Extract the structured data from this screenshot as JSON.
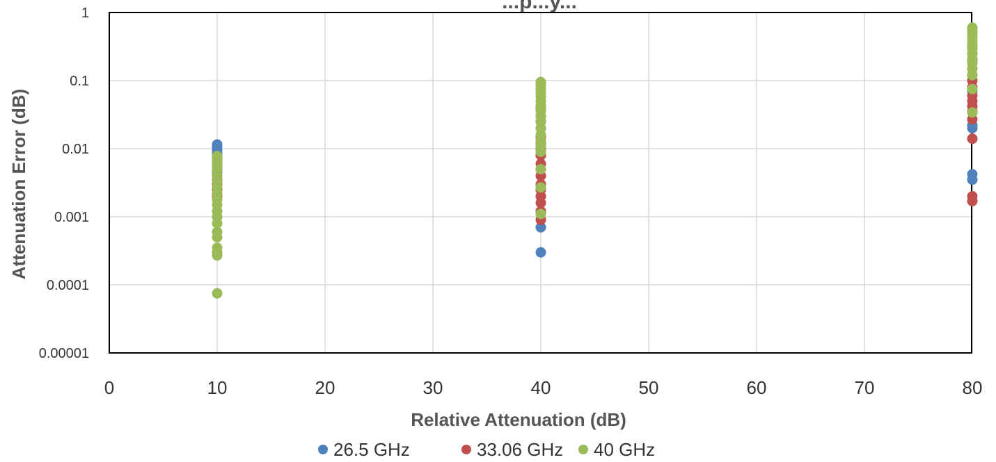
{
  "chart_data": {
    "type": "scatter",
    "title": "...p...y...",
    "xlabel": "Relative Attenuation (dB)",
    "ylabel": "Attenuation Error (dB)",
    "xlim": [
      0,
      80
    ],
    "ylim": [
      1e-05,
      1
    ],
    "y_scale": "log",
    "x_ticks": [
      "0",
      "10",
      "20",
      "30",
      "40",
      "50",
      "60",
      "70",
      "80"
    ],
    "y_ticks": [
      "0.00001",
      "0.0001",
      "0.001",
      "0.01",
      "0.1",
      "1"
    ],
    "grid": true,
    "legend_position": "bottom",
    "series": [
      {
        "name": "26.5 GHz",
        "color": "#4f81bd",
        "points": [
          [
            10,
            0.0115
          ],
          [
            10,
            0.0105
          ],
          [
            10,
            0.0095
          ],
          [
            10,
            0.0085
          ],
          [
            10,
            0.0075
          ],
          [
            10,
            0.0065
          ],
          [
            10,
            0.0055
          ],
          [
            10,
            0.0045
          ],
          [
            10,
            0.0035
          ],
          [
            10,
            0.0025
          ],
          [
            40,
            0.0003
          ],
          [
            40,
            0.0007
          ],
          [
            40,
            0.0012
          ],
          [
            40,
            0.002
          ],
          [
            40,
            0.004
          ],
          [
            40,
            0.008
          ],
          [
            40,
            0.015
          ],
          [
            80,
            0.0035
          ],
          [
            80,
            0.0042
          ],
          [
            80,
            0.02
          ],
          [
            80,
            0.022
          ],
          [
            80,
            0.05
          ],
          [
            80,
            0.07
          ]
        ]
      },
      {
        "name": "33.06 GHz",
        "color": "#c0504d",
        "points": [
          [
            10,
            0.002
          ],
          [
            10,
            0.0025
          ],
          [
            10,
            0.003
          ],
          [
            10,
            0.0035
          ],
          [
            10,
            0.004
          ],
          [
            10,
            0.005
          ],
          [
            10,
            0.006
          ],
          [
            10,
            0.007
          ],
          [
            40,
            0.0009
          ],
          [
            40,
            0.0012
          ],
          [
            40,
            0.0016
          ],
          [
            40,
            0.002
          ],
          [
            40,
            0.0025
          ],
          [
            40,
            0.003
          ],
          [
            40,
            0.004
          ],
          [
            40,
            0.005
          ],
          [
            40,
            0.006
          ],
          [
            40,
            0.008
          ],
          [
            40,
            0.01
          ],
          [
            40,
            0.012
          ],
          [
            40,
            0.015
          ],
          [
            40,
            0.02
          ],
          [
            40,
            0.025
          ],
          [
            40,
            0.03
          ],
          [
            40,
            0.04
          ],
          [
            80,
            0.0017
          ],
          [
            80,
            0.002
          ],
          [
            80,
            0.014
          ],
          [
            80,
            0.027
          ],
          [
            80,
            0.035
          ],
          [
            80,
            0.042
          ],
          [
            80,
            0.05
          ],
          [
            80,
            0.06
          ],
          [
            80,
            0.08
          ],
          [
            80,
            0.1
          ],
          [
            80,
            0.12
          ],
          [
            80,
            0.15
          ],
          [
            80,
            0.2
          ],
          [
            80,
            0.25
          ],
          [
            80,
            0.3
          ]
        ]
      },
      {
        "name": "40 GHz",
        "color": "#9bbb59",
        "points": [
          [
            10,
            7.5e-05
          ],
          [
            10,
            0.00027
          ],
          [
            10,
            0.0003
          ],
          [
            10,
            0.00035
          ],
          [
            10,
            0.0005
          ],
          [
            10,
            0.0006
          ],
          [
            10,
            0.0008
          ],
          [
            10,
            0.001
          ],
          [
            10,
            0.0012
          ],
          [
            10,
            0.0015
          ],
          [
            10,
            0.0018
          ],
          [
            10,
            0.0022
          ],
          [
            10,
            0.0027
          ],
          [
            10,
            0.0033
          ],
          [
            10,
            0.004
          ],
          [
            10,
            0.0048
          ],
          [
            10,
            0.0055
          ],
          [
            10,
            0.0063
          ],
          [
            10,
            0.007
          ],
          [
            10,
            0.0078
          ],
          [
            40,
            0.0011
          ],
          [
            40,
            0.0027
          ],
          [
            40,
            0.005
          ],
          [
            40,
            0.009
          ],
          [
            40,
            0.011
          ],
          [
            40,
            0.013
          ],
          [
            40,
            0.016
          ],
          [
            40,
            0.02
          ],
          [
            40,
            0.025
          ],
          [
            40,
            0.03
          ],
          [
            40,
            0.036
          ],
          [
            40,
            0.043
          ],
          [
            40,
            0.05
          ],
          [
            40,
            0.058
          ],
          [
            40,
            0.066
          ],
          [
            40,
            0.075
          ],
          [
            40,
            0.085
          ],
          [
            40,
            0.095
          ],
          [
            80,
            0.034
          ],
          [
            80,
            0.075
          ],
          [
            80,
            0.12
          ],
          [
            80,
            0.15
          ],
          [
            80,
            0.18
          ],
          [
            80,
            0.21
          ],
          [
            80,
            0.25
          ],
          [
            80,
            0.29
          ],
          [
            80,
            0.33
          ],
          [
            80,
            0.38
          ],
          [
            80,
            0.43
          ],
          [
            80,
            0.49
          ],
          [
            80,
            0.55
          ],
          [
            80,
            0.6
          ]
        ]
      }
    ]
  }
}
